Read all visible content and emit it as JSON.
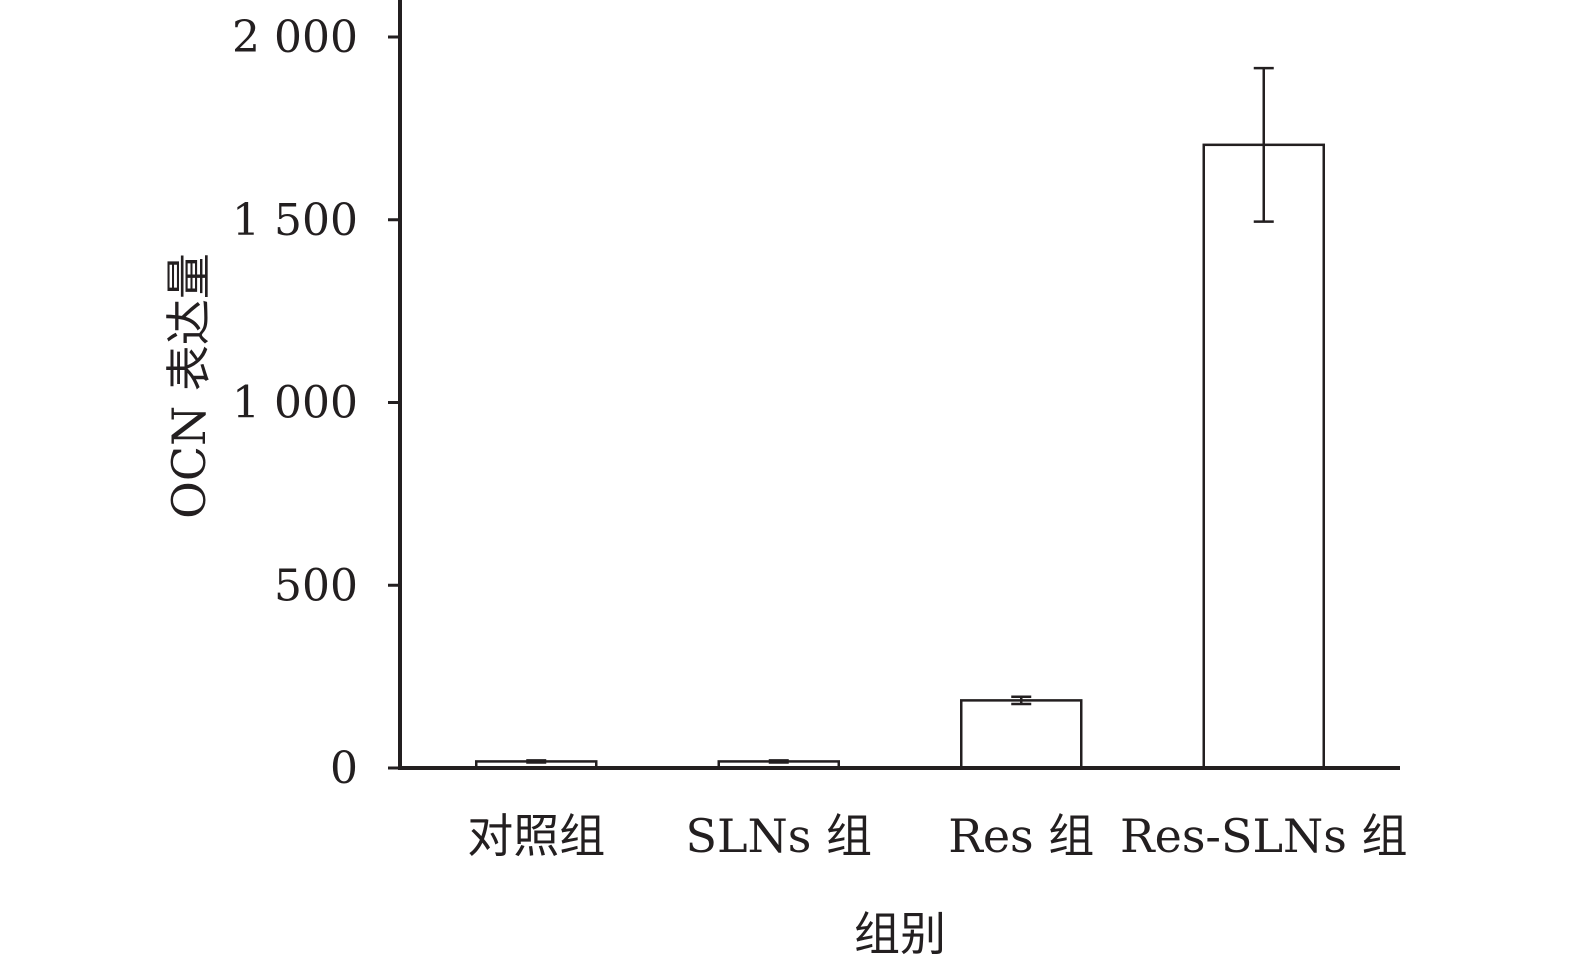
{
  "chart_data": {
    "type": "bar",
    "title": "",
    "xlabel": "组别",
    "ylabel": "OCN 表达量",
    "categories": [
      "对照组",
      "SLNs 组",
      "Res 组",
      "Res-SLNs 组"
    ],
    "values": [
      18,
      18,
      185,
      1705
    ],
    "errors": [
      3,
      3,
      10,
      210
    ],
    "ylim": [
      0,
      2000
    ],
    "yticks": [
      0,
      500,
      1000,
      1500,
      2000
    ],
    "ytick_labels": [
      "0",
      "500",
      "1 000",
      "1 500",
      "2 000"
    ],
    "grid": false,
    "legend": "none",
    "colors": {
      "bar_fill": "#ffffff",
      "bar_stroke": "#231f20",
      "axis": "#231f20"
    }
  }
}
